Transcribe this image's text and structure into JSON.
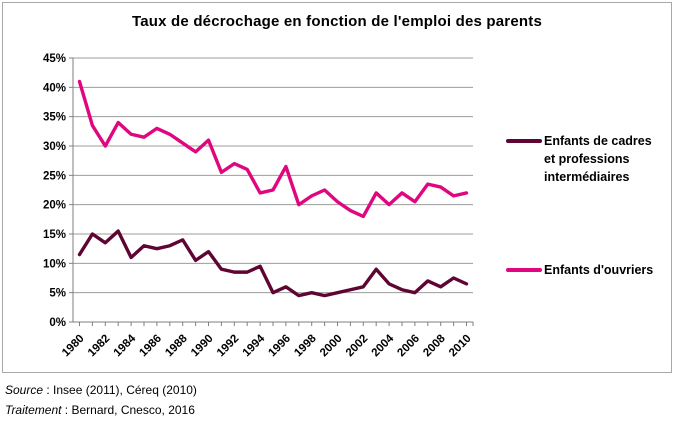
{
  "title": "Taux de décrochage en fonction de l'emploi des parents",
  "footer": {
    "source_label": "Source",
    "source_sep": " : ",
    "source_text": "Insee (2011), Céreq (2010)",
    "traitement_label": "Traitement",
    "traitement_sep": " : ",
    "traitement_text": "Bernard, Cnesco, 2016"
  },
  "chart_data": {
    "type": "line",
    "x": [
      1980,
      1981,
      1982,
      1983,
      1984,
      1985,
      1986,
      1987,
      1988,
      1989,
      1990,
      1991,
      1992,
      1993,
      1994,
      1995,
      1996,
      1997,
      1998,
      1999,
      2000,
      2001,
      2002,
      2003,
      2004,
      2005,
      2006,
      2007,
      2008,
      2009,
      2010
    ],
    "series": [
      {
        "name": "Enfants de cadres et professions intermédiaires",
        "color": "#5f0533",
        "values": [
          11.5,
          15,
          13.5,
          15.5,
          11,
          13,
          12.5,
          13,
          14,
          10.5,
          12,
          9,
          8.5,
          8.5,
          9.5,
          5,
          6,
          4.5,
          5,
          4.5,
          5,
          5.5,
          6,
          9,
          6.5,
          5.5,
          5,
          7,
          6,
          7.5,
          6.5
        ]
      },
      {
        "name": "Enfants d'ouvriers",
        "color": "#e0067f",
        "values": [
          41,
          33.5,
          30,
          34,
          32,
          31.5,
          33,
          32,
          30.5,
          29,
          31,
          25.5,
          27,
          26,
          22,
          22.5,
          26.5,
          20,
          21.5,
          22.5,
          20.5,
          19,
          18,
          22,
          20,
          22,
          20.5,
          23.5,
          23,
          21.5,
          22
        ]
      }
    ],
    "ylim": [
      0,
      45
    ],
    "ytick_step": 5,
    "ytick_suffix": "%",
    "xtick_step": 2,
    "grid": true,
    "grid_color": "#9c9c9c",
    "axis_color": "#7f7f7f",
    "legend_position": "right",
    "xlabel": "",
    "ylabel": ""
  }
}
